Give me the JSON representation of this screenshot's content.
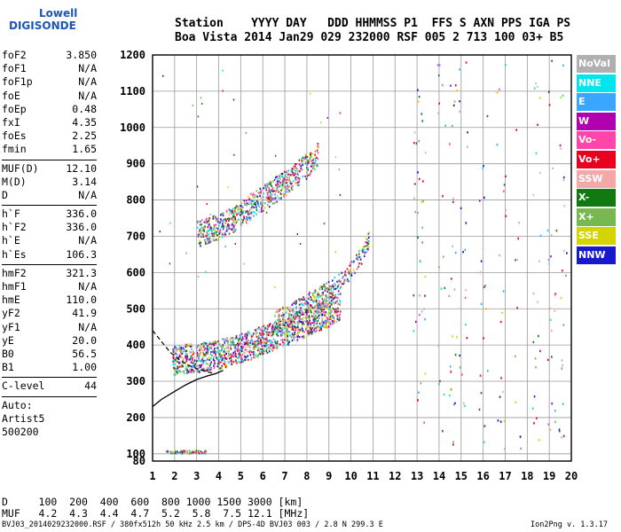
{
  "logo": {
    "line1": "Lowell",
    "line2": "DIGISONDE"
  },
  "header": {
    "row1": "Station    YYYY DAY   DDD HHMMSS P1  FFS S AXN PPS IGA PS",
    "row2": "Boa Vista 2014 Jan29 029 232000 RSF 005 2 713 100 03+ B5"
  },
  "params_groups": [
    [
      [
        "foF2",
        "3.850"
      ],
      [
        "foF1",
        "N/A"
      ],
      [
        "foF1p",
        "N/A"
      ],
      [
        "foE",
        "N/A"
      ],
      [
        "foEp",
        "0.48"
      ],
      [
        "fxI",
        "4.35"
      ],
      [
        "foEs",
        "2.25"
      ],
      [
        "fmin",
        "1.65"
      ]
    ],
    [
      [
        "MUF(D)",
        "12.10"
      ],
      [
        "M(D)",
        "3.14"
      ],
      [
        "D",
        "N/A"
      ]
    ],
    [
      [
        "h`F",
        "336.0"
      ],
      [
        "h`F2",
        "336.0"
      ],
      [
        "h`E",
        "N/A"
      ],
      [
        "h`Es",
        "106.3"
      ]
    ],
    [
      [
        "hmF2",
        "321.3"
      ],
      [
        "hmF1",
        "N/A"
      ],
      [
        "hmE",
        "110.0"
      ],
      [
        "yF2",
        "41.9"
      ],
      [
        "yF1",
        "N/A"
      ],
      [
        "yE",
        "20.0"
      ],
      [
        "B0",
        "56.5"
      ],
      [
        "B1",
        "1.00"
      ]
    ],
    [
      [
        "C-level",
        "44"
      ]
    ]
  ],
  "auto_lines": [
    "Auto:",
    "Artist5",
    "500200"
  ],
  "legend": [
    {
      "label": "NoVal",
      "color": "#b0b0b0"
    },
    {
      "label": "NNE",
      "color": "#00e5ee"
    },
    {
      "label": "E",
      "color": "#3aa6ff"
    },
    {
      "label": "W",
      "color": "#b000b0"
    },
    {
      "label": "Vo-",
      "color": "#ff44aa"
    },
    {
      "label": "Vo+",
      "color": "#e8001c"
    },
    {
      "label": "SSW",
      "color": "#f4a8a8"
    },
    {
      "label": "X-",
      "color": "#107a10"
    },
    {
      "label": "X+",
      "color": "#78b850"
    },
    {
      "label": "SSE",
      "color": "#d4d400"
    },
    {
      "label": "NNW",
      "color": "#1818cc"
    }
  ],
  "mufTable": {
    "row1": "D     100  200  400  600  800 1000 1500 3000 [km]",
    "row2": "MUF   4.2  4.3  4.4  4.7  5.2  5.8  7.5 12.1 [MHz]"
  },
  "footer": {
    "left": "BVJ03_2014029232000.RSF / 380fx512h 50 kHz 2.5 km / DPS-4D BVJ03 003 / 2.8 N 299.3 E",
    "right": "Ion2Png v. 1.3.17"
  },
  "chart_data": {
    "type": "scatter",
    "title": "",
    "xlabel": "",
    "ylabel": "",
    "xlim": [
      1,
      20
    ],
    "ylim": [
      80,
      1200
    ],
    "xticks": [
      1,
      2,
      3,
      4,
      5,
      6,
      7,
      8,
      9,
      10,
      11,
      12,
      13,
      14,
      15,
      16,
      17,
      18,
      19,
      20
    ],
    "yticks": [
      80,
      100,
      200,
      300,
      400,
      500,
      600,
      700,
      800,
      900,
      1000,
      1100,
      1200
    ],
    "grid": true,
    "legend_position": "right",
    "o_trace_lower_edge": {
      "x": [
        1.9,
        2.5,
        3.0,
        3.5,
        4.0,
        4.5,
        5.0,
        5.5,
        6.0,
        6.5,
        7.0,
        7.5,
        8.0,
        8.5,
        9.0,
        9.5
      ],
      "y": [
        325,
        332,
        335,
        340,
        345,
        352,
        362,
        372,
        385,
        396,
        408,
        420,
        435,
        448,
        462,
        480
      ]
    },
    "x_trace_upper": {
      "x": [
        6.5,
        7.0,
        7.5,
        8.0,
        8.5,
        9.0,
        9.5,
        10.0,
        10.5,
        10.8
      ],
      "y": [
        450,
        465,
        480,
        500,
        515,
        535,
        560,
        590,
        630,
        670
      ]
    },
    "second_hop": {
      "x": [
        3.0,
        3.5,
        4.0,
        4.5,
        5.0,
        5.5,
        6.0,
        6.5,
        7.0,
        7.5,
        8.0,
        8.5
      ],
      "y": [
        680,
        690,
        700,
        715,
        735,
        760,
        780,
        800,
        820,
        845,
        870,
        900
      ]
    },
    "es_trace": {
      "x": [
        1.6,
        3.4
      ],
      "y": [
        106,
        106
      ]
    },
    "profile_solid": {
      "x": [
        1.0,
        1.4,
        2.0,
        2.5,
        3.0,
        3.5,
        3.85,
        4.2
      ],
      "y": [
        230,
        250,
        272,
        290,
        305,
        315,
        321,
        330
      ]
    },
    "profile_dashed": {
      "x": [
        1.0,
        1.4,
        1.8,
        2.2,
        2.6,
        3.0,
        3.4,
        3.85
      ],
      "y": [
        440,
        410,
        380,
        360,
        345,
        335,
        327,
        321
      ]
    }
  }
}
